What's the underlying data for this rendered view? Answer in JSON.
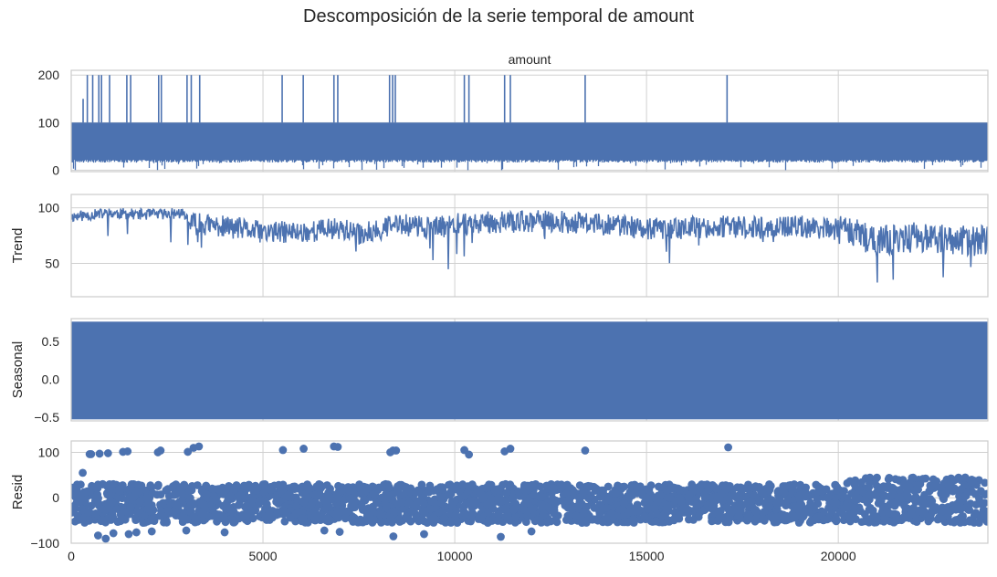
{
  "figure": {
    "title": "Descomposición de la serie temporal de amount"
  },
  "colors": {
    "series": "#4c72b0",
    "grid": "#d0d0d0",
    "frame": "#cccccc",
    "text": "#262626"
  },
  "chart_data": [
    {
      "type": "line",
      "panel": "observed",
      "title": "amount",
      "ylabel": "",
      "xlim": [
        0,
        23900
      ],
      "ylim": [
        -3,
        210
      ],
      "yticks": [
        0,
        100,
        200
      ],
      "xticks": [
        0,
        5000,
        10000,
        15000,
        20000
      ],
      "grid": true,
      "band": {
        "low": 22,
        "high": 100
      },
      "spikes": [
        {
          "x": 310,
          "y": 150
        },
        {
          "x": 420,
          "y": 200
        },
        {
          "x": 560,
          "y": 200
        },
        {
          "x": 720,
          "y": 200
        },
        {
          "x": 790,
          "y": 200
        },
        {
          "x": 1000,
          "y": 200
        },
        {
          "x": 1450,
          "y": 200
        },
        {
          "x": 1550,
          "y": 200
        },
        {
          "x": 2280,
          "y": 200
        },
        {
          "x": 2350,
          "y": 200
        },
        {
          "x": 3020,
          "y": 200
        },
        {
          "x": 3130,
          "y": 200
        },
        {
          "x": 3350,
          "y": 200
        },
        {
          "x": 5500,
          "y": 200
        },
        {
          "x": 6050,
          "y": 200
        },
        {
          "x": 6850,
          "y": 200
        },
        {
          "x": 6950,
          "y": 200
        },
        {
          "x": 8300,
          "y": 200
        },
        {
          "x": 8380,
          "y": 200
        },
        {
          "x": 8450,
          "y": 200
        },
        {
          "x": 10250,
          "y": 200
        },
        {
          "x": 10370,
          "y": 200
        },
        {
          "x": 11300,
          "y": 200
        },
        {
          "x": 11450,
          "y": 200
        },
        {
          "x": 13400,
          "y": 200
        },
        {
          "x": 17100,
          "y": 200
        }
      ]
    },
    {
      "type": "line",
      "panel": "trend",
      "ylabel": "Trend",
      "xlim": [
        0,
        23900
      ],
      "ylim": [
        20,
        112
      ],
      "yticks": [
        50,
        100
      ],
      "xticks": [
        0,
        5000,
        10000,
        15000,
        20000
      ],
      "grid": true,
      "level": [
        [
          0,
          92
        ],
        [
          1000,
          95
        ],
        [
          2000,
          94
        ],
        [
          2900,
          95
        ],
        [
          3050,
          86
        ],
        [
          4000,
          83
        ],
        [
          5000,
          78
        ],
        [
          6000,
          78
        ],
        [
          7000,
          82
        ],
        [
          7500,
          76
        ],
        [
          8500,
          85
        ],
        [
          9500,
          82
        ],
        [
          10000,
          85
        ],
        [
          11000,
          87
        ],
        [
          12000,
          88
        ],
        [
          13000,
          87
        ],
        [
          14000,
          85
        ],
        [
          15000,
          81
        ],
        [
          16000,
          82
        ],
        [
          17000,
          83
        ],
        [
          18000,
          82
        ],
        [
          19000,
          83
        ],
        [
          20000,
          81
        ],
        [
          20500,
          76
        ],
        [
          21000,
          69
        ],
        [
          21500,
          71
        ],
        [
          22000,
          74
        ],
        [
          23000,
          70
        ],
        [
          23900,
          71
        ]
      ]
    },
    {
      "type": "line",
      "panel": "seasonal",
      "ylabel": "Seasonal",
      "xlim": [
        0,
        23900
      ],
      "ylim": [
        -0.55,
        0.8
      ],
      "yticks": [
        -0.5,
        0.0,
        0.5
      ],
      "ytick_labels": [
        "−0.5",
        "0.0",
        "0.5"
      ],
      "xticks": [
        0,
        5000,
        10000,
        15000,
        20000
      ],
      "grid": true,
      "band": {
        "low": -0.53,
        "high": 0.76
      }
    },
    {
      "type": "scatter",
      "panel": "resid",
      "ylabel": "Resid",
      "xlim": [
        0,
        23900
      ],
      "ylim": [
        -100,
        125
      ],
      "yticks": [
        -100,
        0,
        100
      ],
      "ytick_labels": [
        "−100",
        "0",
        "100"
      ],
      "xticks": [
        0,
        5000,
        10000,
        15000,
        20000
      ],
      "xtick_labels": [
        "0",
        "5000",
        "10000",
        "15000",
        "20000"
      ],
      "grid": true,
      "outliers": [
        {
          "x": 300,
          "y": 55
        },
        {
          "x": 480,
          "y": 96
        },
        {
          "x": 520,
          "y": 96
        },
        {
          "x": 740,
          "y": 97
        },
        {
          "x": 960,
          "y": 98
        },
        {
          "x": 1350,
          "y": 101
        },
        {
          "x": 1470,
          "y": 102
        },
        {
          "x": 2260,
          "y": 100
        },
        {
          "x": 2330,
          "y": 104
        },
        {
          "x": 3040,
          "y": 101
        },
        {
          "x": 3190,
          "y": 110
        },
        {
          "x": 3330,
          "y": 113
        },
        {
          "x": 5520,
          "y": 105
        },
        {
          "x": 6060,
          "y": 108
        },
        {
          "x": 6850,
          "y": 113
        },
        {
          "x": 6950,
          "y": 112
        },
        {
          "x": 8320,
          "y": 100
        },
        {
          "x": 8390,
          "y": 104
        },
        {
          "x": 8470,
          "y": 104
        },
        {
          "x": 10250,
          "y": 105
        },
        {
          "x": 10370,
          "y": 95
        },
        {
          "x": 11300,
          "y": 102
        },
        {
          "x": 11450,
          "y": 108
        },
        {
          "x": 13400,
          "y": 104
        },
        {
          "x": 17130,
          "y": 111
        }
      ],
      "lows": [
        {
          "x": 700,
          "y": -83
        },
        {
          "x": 900,
          "y": -90
        },
        {
          "x": 1100,
          "y": -78
        },
        {
          "x": 1500,
          "y": -80
        },
        {
          "x": 1700,
          "y": -76
        },
        {
          "x": 2100,
          "y": -74
        },
        {
          "x": 3000,
          "y": -72
        },
        {
          "x": 4000,
          "y": -76
        },
        {
          "x": 6600,
          "y": -72
        },
        {
          "x": 7000,
          "y": -75
        },
        {
          "x": 8400,
          "y": -85
        },
        {
          "x": 9200,
          "y": -80
        },
        {
          "x": 11200,
          "y": -86
        },
        {
          "x": 12000,
          "y": -74
        }
      ]
    }
  ]
}
